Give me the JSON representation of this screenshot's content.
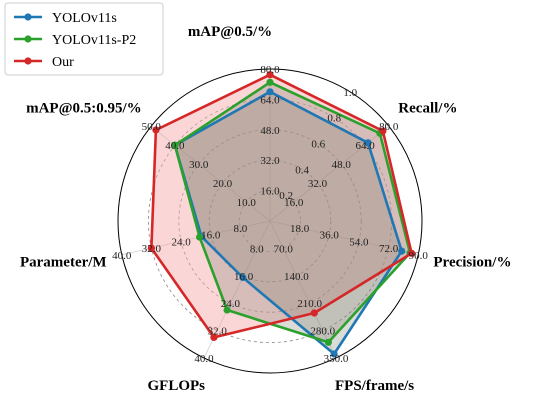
{
  "chart_data": {
    "type": "radar",
    "title": "",
    "axes": [
      {
        "name": "mAP@0.5/%",
        "ticks": [
          "16.0",
          "32.0",
          "48.0",
          "64.0",
          "80.0"
        ],
        "max": 80
      },
      {
        "name": "Recall/%",
        "ticks": [
          "16.0",
          "32.0",
          "48.0",
          "64.0",
          "80.0"
        ],
        "max": 80
      },
      {
        "name": "Precision/%",
        "ticks": [
          "18.0",
          "36.0",
          "54.0",
          "72.0",
          "90.0"
        ],
        "max": 90
      },
      {
        "name": "FPS/frame/s",
        "ticks": [
          "70.0",
          "140.0",
          "210.0",
          "280.0",
          "350.0"
        ],
        "max": 350
      },
      {
        "name": "GFLOPs",
        "ticks": [
          "8.0",
          "16.0",
          "24.0",
          "32.0",
          "40.0"
        ],
        "max": 40
      },
      {
        "name": "Parameter/M",
        "ticks": [
          "8.0",
          "16.0",
          "24.0",
          "32.0",
          "40.0"
        ],
        "max": 40
      },
      {
        "name": "mAP@0.5:0.95/%",
        "ticks": [
          "10.0",
          "20.0",
          "30.0",
          "40.0",
          "50.0"
        ],
        "max": 50
      }
    ],
    "radial_ticks": [
      "0.2",
      "0.4",
      "0.6",
      "0.8",
      "1.0"
    ],
    "series": [
      {
        "name": "YOLOv11s",
        "color": "#1f77b4",
        "fill": false,
        "values": [
          68,
          66,
          80,
          340,
          16.5,
          18.5,
          40
        ]
      },
      {
        "name": "YOLOv11s-P2",
        "color": "#2ca02c",
        "fill": false,
        "values": [
          73,
          74,
          85,
          310,
          26,
          19,
          40
        ]
      },
      {
        "name": "Our",
        "color": "#d62728",
        "fill": true,
        "fill_color": "#f4a3a3",
        "values": [
          77,
          76,
          86,
          235,
          34,
          32,
          48
        ]
      }
    ],
    "legend_position": "top-left",
    "grid": true
  }
}
